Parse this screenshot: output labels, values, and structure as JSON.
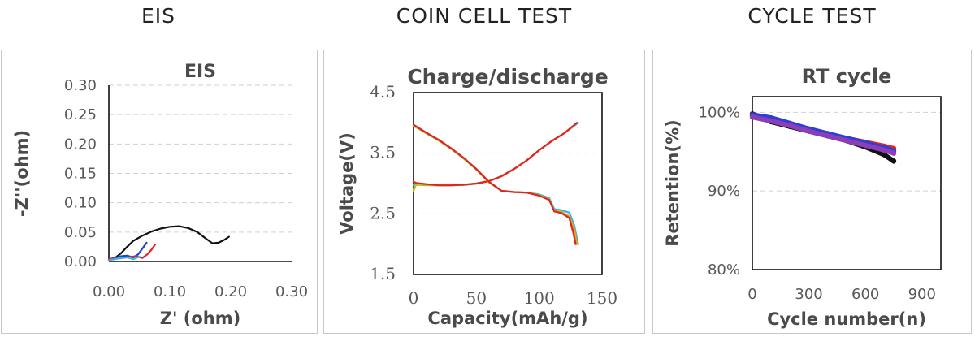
{
  "sections": [
    {
      "label": "EIS"
    },
    {
      "label": "COIN CELL TEST"
    },
    {
      "label": "CYCLE TEST"
    }
  ],
  "chart_data": [
    {
      "type": "line",
      "title": "EIS",
      "xlabel": "Z' (ohm)",
      "ylabel": "-Z''(ohm)",
      "xlim": [
        0,
        0.3
      ],
      "ylim": [
        0,
        0.3
      ],
      "xticks": [
        "0.00",
        "0.10",
        "0.20",
        "0.30"
      ],
      "yticks": [
        "0.00",
        "0.05",
        "0.10",
        "0.15",
        "0.20",
        "0.25",
        "0.30"
      ],
      "grid": "horizontal",
      "series": [
        {
          "color": "#111111",
          "x": [
            0.0,
            0.01,
            0.02,
            0.03,
            0.04,
            0.055,
            0.07,
            0.085,
            0.1,
            0.115,
            0.13,
            0.145,
            0.158,
            0.17,
            0.18,
            0.19,
            0.197
          ],
          "y": [
            0.002,
            0.006,
            0.014,
            0.025,
            0.035,
            0.044,
            0.051,
            0.056,
            0.059,
            0.06,
            0.057,
            0.05,
            0.04,
            0.031,
            0.032,
            0.037,
            0.042
          ]
        },
        {
          "color": "#1f3fd8",
          "x": [
            0.0,
            0.01,
            0.02,
            0.03,
            0.04,
            0.048,
            0.055,
            0.062
          ],
          "y": [
            0.004,
            0.006,
            0.009,
            0.01,
            0.007,
            0.012,
            0.022,
            0.032
          ]
        },
        {
          "color": "#e52222",
          "x": [
            0.0,
            0.015,
            0.03,
            0.045,
            0.055,
            0.063,
            0.07,
            0.076
          ],
          "y": [
            0.004,
            0.005,
            0.007,
            0.009,
            0.006,
            0.012,
            0.02,
            0.029
          ]
        },
        {
          "color": "#2fb8e6",
          "x": [
            0.0,
            0.01,
            0.02,
            0.03,
            0.04,
            0.05
          ],
          "y": [
            0.002,
            0.004,
            0.006,
            0.007,
            0.004,
            0.008
          ]
        }
      ]
    },
    {
      "type": "line",
      "title": "Charge/discharge",
      "xlabel": "Capacity(mAh/g)",
      "ylabel": "Voltage(V)",
      "xlim": [
        0,
        150
      ],
      "ylim": [
        1.5,
        4.5
      ],
      "xticks": [
        "0",
        "50",
        "100",
        "150"
      ],
      "yticks": [
        "1.5",
        "2.5",
        "3.5",
        "4.5"
      ],
      "grid": "horizontal",
      "series": [
        {
          "color": "#2fb8e6",
          "x": [
            0,
            2,
            10,
            20,
            30,
            40,
            50,
            60,
            70,
            80,
            90,
            100,
            110,
            120,
            131
          ],
          "y": [
            2.97,
            3.0,
            2.98,
            2.97,
            2.97,
            2.98,
            3.0,
            3.04,
            3.12,
            3.24,
            3.38,
            3.55,
            3.7,
            3.83,
            4.0
          ]
        },
        {
          "color": "#e8a21a",
          "x": [
            0,
            2,
            10,
            20,
            30,
            40,
            50,
            60,
            70,
            80,
            90,
            100,
            110,
            120,
            130
          ],
          "y": [
            2.88,
            2.98,
            2.97,
            2.97,
            2.97,
            2.98,
            3.0,
            3.04,
            3.12,
            3.24,
            3.38,
            3.55,
            3.7,
            3.83,
            4.0
          ]
        },
        {
          "color": "#9acd32",
          "x": [
            0,
            2,
            10,
            20,
            30,
            40,
            50,
            60,
            70,
            80,
            90,
            100,
            110,
            120,
            130
          ],
          "y": [
            2.9,
            2.99,
            2.98,
            2.97,
            2.97,
            2.98,
            3.0,
            3.04,
            3.12,
            3.24,
            3.38,
            3.55,
            3.7,
            3.83,
            4.0
          ]
        },
        {
          "color": "#e52222",
          "x": [
            0,
            2,
            10,
            20,
            30,
            40,
            50,
            60,
            70,
            80,
            90,
            100,
            110,
            120,
            130
          ],
          "y": [
            3.03,
            3.01,
            2.99,
            2.97,
            2.97,
            2.98,
            3.0,
            3.04,
            3.12,
            3.24,
            3.38,
            3.55,
            3.7,
            3.83,
            4.0
          ]
        },
        {
          "color": "#2fb8e6",
          "x": [
            0,
            10,
            20,
            30,
            40,
            50,
            60,
            70,
            80,
            90,
            100,
            108,
            112,
            118,
            124,
            128,
            131
          ],
          "y": [
            3.96,
            3.84,
            3.72,
            3.58,
            3.42,
            3.24,
            3.03,
            2.88,
            2.86,
            2.85,
            2.82,
            2.76,
            2.58,
            2.56,
            2.52,
            2.3,
            2.0
          ]
        },
        {
          "color": "#e8a21a",
          "x": [
            0,
            10,
            20,
            30,
            40,
            50,
            60,
            70,
            80,
            90,
            100,
            108,
            112,
            118,
            124,
            128,
            130
          ],
          "y": [
            3.95,
            3.83,
            3.71,
            3.57,
            3.41,
            3.23,
            3.02,
            2.88,
            2.86,
            2.85,
            2.81,
            2.74,
            2.56,
            2.53,
            2.46,
            2.24,
            2.0
          ]
        },
        {
          "color": "#9acd32",
          "x": [
            0,
            10,
            20,
            30,
            40,
            50,
            60,
            70,
            80,
            90,
            100,
            108,
            112,
            118,
            124,
            127,
            129
          ],
          "y": [
            3.95,
            3.83,
            3.71,
            3.57,
            3.41,
            3.23,
            3.02,
            2.88,
            2.86,
            2.85,
            2.81,
            2.74,
            2.55,
            2.52,
            2.44,
            2.22,
            2.0
          ]
        },
        {
          "color": "#e52222",
          "x": [
            0,
            10,
            20,
            30,
            40,
            50,
            60,
            70,
            80,
            90,
            100,
            108,
            112,
            118,
            124,
            127,
            129
          ],
          "y": [
            3.97,
            3.84,
            3.72,
            3.58,
            3.42,
            3.24,
            3.03,
            2.88,
            2.86,
            2.85,
            2.8,
            2.73,
            2.54,
            2.51,
            2.43,
            2.2,
            2.0
          ]
        }
      ]
    },
    {
      "type": "scatter",
      "title": "RT cycle",
      "xlabel": "Cycle number(n)",
      "ylabel": "Retention(%)",
      "xlim": [
        0,
        1000
      ],
      "ylim": [
        80,
        102
      ],
      "xticks": [
        "0",
        "300",
        "600",
        "900"
      ],
      "yticks": [
        "80%",
        "90%",
        "100%"
      ],
      "grid": "horizontal",
      "series": [
        {
          "color": "#111111",
          "x": [
            0,
            100,
            200,
            300,
            400,
            500,
            600,
            700,
            750
          ],
          "y": [
            99.8,
            98.8,
            98.2,
            97.6,
            97.0,
            96.4,
            95.6,
            94.6,
            93.8
          ]
        },
        {
          "color": "#e52222",
          "x": [
            0,
            100,
            200,
            300,
            400,
            500,
            600,
            700,
            750
          ],
          "y": [
            99.6,
            99.0,
            98.4,
            97.8,
            97.2,
            96.7,
            96.2,
            95.7,
            95.4
          ]
        },
        {
          "color": "#2b3fd8",
          "x": [
            0,
            100,
            200,
            300,
            400,
            500,
            600,
            700,
            750
          ],
          "y": [
            99.7,
            99.3,
            98.6,
            97.9,
            97.3,
            96.7,
            96.1,
            95.5,
            95.1
          ]
        },
        {
          "color": "#8a3fb8",
          "x": [
            0,
            100,
            200,
            300,
            400,
            500,
            600,
            700,
            750
          ],
          "y": [
            99.4,
            98.9,
            98.3,
            97.6,
            97.0,
            96.4,
            95.8,
            95.2,
            94.8
          ]
        }
      ]
    }
  ]
}
